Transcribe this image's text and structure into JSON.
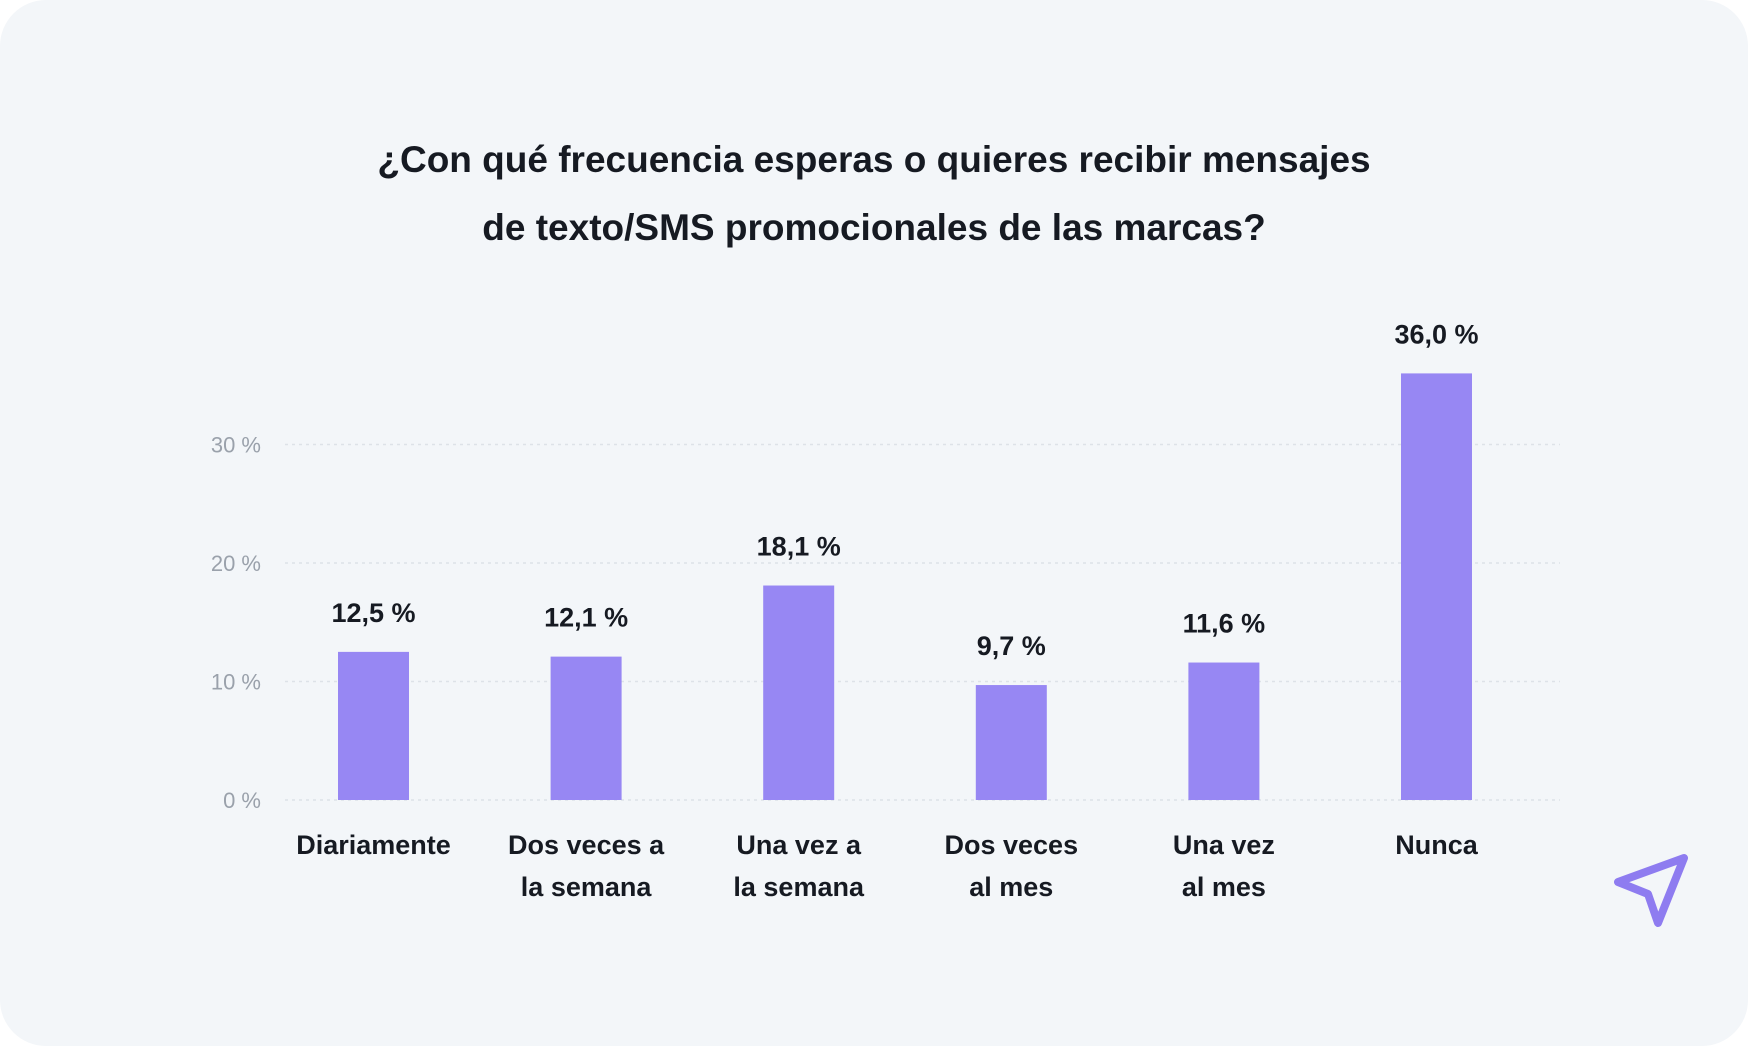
{
  "chart_data": {
    "type": "bar",
    "title_lines": [
      "¿Con qué frecuencia esperas o quieres recibir mensajes",
      "de texto/SMS promocionales de las marcas?"
    ],
    "categories": [
      [
        "Diariamente"
      ],
      [
        "Dos veces a",
        "la semana"
      ],
      [
        "Una vez a",
        "la semana"
      ],
      [
        "Dos veces",
        "al mes"
      ],
      [
        "Una vez",
        "al mes"
      ],
      [
        "Nunca"
      ]
    ],
    "values": [
      12.5,
      12.1,
      18.1,
      9.7,
      11.6,
      36.0
    ],
    "value_labels": [
      "12,5 %",
      "12,1 %",
      "18,1 %",
      "9,7 %",
      "11,6 %",
      "36,0 %"
    ],
    "y_ticks": [
      0,
      10,
      20,
      30
    ],
    "y_tick_labels": [
      "0 %",
      "10 %",
      "20 %",
      "30 %"
    ],
    "ylim": [
      0,
      36
    ],
    "grid": true,
    "grid_style": "dotted",
    "bar_color": "#9787f3",
    "xlabel": "",
    "ylabel": ""
  },
  "colors": {
    "card_background": "#f3f6f9",
    "text": "#161a22",
    "tick_text": "#9aa1ab",
    "grid": "#dde2e8",
    "accent": "#8e7cf0"
  },
  "logo": {
    "icon": "paper-plane-icon"
  }
}
